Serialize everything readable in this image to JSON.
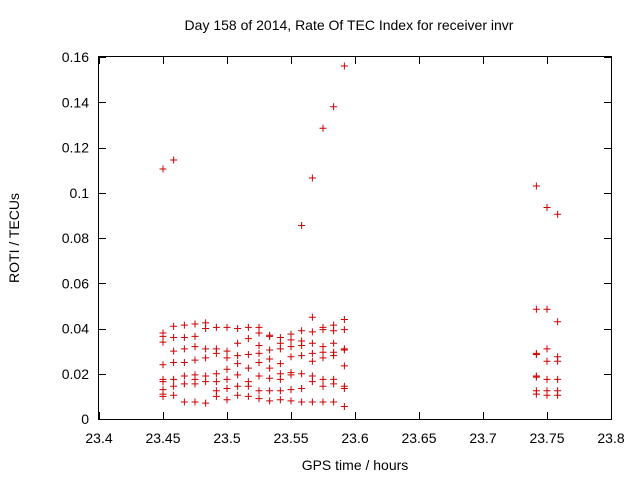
{
  "chart_data": {
    "type": "scatter",
    "title": "Day 158 of 2014, Rate Of TEC Index for receiver invr",
    "xlabel": "GPS time / hours",
    "ylabel": "ROTI / TECUs",
    "xlim": [
      23.4,
      23.8
    ],
    "ylim": [
      0,
      0.16
    ],
    "xticks": [
      23.4,
      23.45,
      23.5,
      23.55,
      23.6,
      23.65,
      23.7,
      23.75,
      23.8
    ],
    "yticks": [
      0,
      0.02,
      0.04,
      0.06,
      0.08,
      0.1,
      0.12,
      0.14,
      0.16
    ],
    "xtick_labels": [
      "23.4",
      "23.45",
      "23.5",
      "23.55",
      "23.6",
      "23.65",
      "23.7",
      "23.75",
      "23.8"
    ],
    "ytick_labels": [
      "0",
      "0.02",
      "0.04",
      "0.06",
      "0.08",
      "0.1",
      "0.12",
      "0.14",
      "0.16"
    ],
    "grid": false,
    "marker": "+",
    "color": "#cc0000",
    "series": [
      {
        "name": "ROTI",
        "points": [
          [
            23.45,
            0.1105
          ],
          [
            23.4583,
            0.1145
          ],
          [
            23.5583,
            0.0855
          ],
          [
            23.5667,
            0.1065
          ],
          [
            23.575,
            0.1285
          ],
          [
            23.5833,
            0.138
          ],
          [
            23.5917,
            0.156
          ],
          [
            23.7417,
            0.103
          ],
          [
            23.75,
            0.0935
          ],
          [
            23.7583,
            0.0905
          ],
          [
            23.45,
            0.038
          ],
          [
            23.45,
            0.0365
          ],
          [
            23.45,
            0.034
          ],
          [
            23.45,
            0.024
          ],
          [
            23.45,
            0.0175
          ],
          [
            23.45,
            0.0165
          ],
          [
            23.45,
            0.013
          ],
          [
            23.45,
            0.011
          ],
          [
            23.45,
            0.01
          ],
          [
            23.4583,
            0.041
          ],
          [
            23.4583,
            0.036
          ],
          [
            23.4583,
            0.03
          ],
          [
            23.4583,
            0.025
          ],
          [
            23.4583,
            0.0175
          ],
          [
            23.4583,
            0.0145
          ],
          [
            23.4583,
            0.0105
          ],
          [
            23.4667,
            0.0415
          ],
          [
            23.4667,
            0.036
          ],
          [
            23.4667,
            0.031
          ],
          [
            23.4667,
            0.025
          ],
          [
            23.4667,
            0.019
          ],
          [
            23.4667,
            0.0155
          ],
          [
            23.4667,
            0.0075
          ],
          [
            23.475,
            0.042
          ],
          [
            23.475,
            0.0365
          ],
          [
            23.475,
            0.032
          ],
          [
            23.475,
            0.026
          ],
          [
            23.475,
            0.0195
          ],
          [
            23.475,
            0.0175
          ],
          [
            23.475,
            0.0155
          ],
          [
            23.475,
            0.0075
          ],
          [
            23.4833,
            0.0425
          ],
          [
            23.4833,
            0.04
          ],
          [
            23.4833,
            0.031
          ],
          [
            23.4833,
            0.027
          ],
          [
            23.4833,
            0.019
          ],
          [
            23.4833,
            0.0165
          ],
          [
            23.4833,
            0.007
          ],
          [
            23.4917,
            0.0405
          ],
          [
            23.4917,
            0.031
          ],
          [
            23.4917,
            0.029
          ],
          [
            23.4917,
            0.02
          ],
          [
            23.4917,
            0.0165
          ],
          [
            23.4917,
            0.0125
          ],
          [
            23.4917,
            0.01
          ],
          [
            23.5,
            0.0405
          ],
          [
            23.5,
            0.03
          ],
          [
            23.5,
            0.027
          ],
          [
            23.5,
            0.022
          ],
          [
            23.5,
            0.0175
          ],
          [
            23.5,
            0.0135
          ],
          [
            23.5,
            0.0085
          ],
          [
            23.5083,
            0.04
          ],
          [
            23.5083,
            0.0335
          ],
          [
            23.5083,
            0.028
          ],
          [
            23.5083,
            0.0245
          ],
          [
            23.5083,
            0.0195
          ],
          [
            23.5083,
            0.0145
          ],
          [
            23.5083,
            0.0105
          ],
          [
            23.5167,
            0.0405
          ],
          [
            23.5167,
            0.0355
          ],
          [
            23.5167,
            0.0285
          ],
          [
            23.5167,
            0.0225
          ],
          [
            23.5167,
            0.0165
          ],
          [
            23.5167,
            0.0145
          ],
          [
            23.5167,
            0.01
          ],
          [
            23.525,
            0.0405
          ],
          [
            23.525,
            0.038
          ],
          [
            23.525,
            0.0325
          ],
          [
            23.525,
            0.029
          ],
          [
            23.525,
            0.025
          ],
          [
            23.525,
            0.019
          ],
          [
            23.525,
            0.0125
          ],
          [
            23.525,
            0.009
          ],
          [
            23.5333,
            0.037
          ],
          [
            23.5333,
            0.0365
          ],
          [
            23.5333,
            0.0305
          ],
          [
            23.5333,
            0.0265
          ],
          [
            23.5333,
            0.0225
          ],
          [
            23.5333,
            0.018
          ],
          [
            23.5333,
            0.0125
          ],
          [
            23.5333,
            0.008
          ],
          [
            23.5417,
            0.036
          ],
          [
            23.5417,
            0.0335
          ],
          [
            23.5417,
            0.031
          ],
          [
            23.5417,
            0.0245
          ],
          [
            23.5417,
            0.02
          ],
          [
            23.5417,
            0.0175
          ],
          [
            23.5417,
            0.0125
          ],
          [
            23.5417,
            0.0085
          ],
          [
            23.55,
            0.0375
          ],
          [
            23.55,
            0.035
          ],
          [
            23.55,
            0.032
          ],
          [
            23.55,
            0.0275
          ],
          [
            23.55,
            0.0205
          ],
          [
            23.55,
            0.0195
          ],
          [
            23.55,
            0.013
          ],
          [
            23.55,
            0.008
          ],
          [
            23.5583,
            0.039
          ],
          [
            23.5583,
            0.0345
          ],
          [
            23.5583,
            0.0325
          ],
          [
            23.5583,
            0.028
          ],
          [
            23.5583,
            0.02
          ],
          [
            23.5583,
            0.0135
          ],
          [
            23.5583,
            0.0075
          ],
          [
            23.5667,
            0.045
          ],
          [
            23.5667,
            0.0385
          ],
          [
            23.5667,
            0.0335
          ],
          [
            23.5667,
            0.029
          ],
          [
            23.5667,
            0.0255
          ],
          [
            23.5667,
            0.019
          ],
          [
            23.5667,
            0.0165
          ],
          [
            23.5667,
            0.0075
          ],
          [
            23.575,
            0.0405
          ],
          [
            23.575,
            0.0395
          ],
          [
            23.575,
            0.032
          ],
          [
            23.575,
            0.0295
          ],
          [
            23.575,
            0.027
          ],
          [
            23.575,
            0.0175
          ],
          [
            23.575,
            0.0145
          ],
          [
            23.575,
            0.0075
          ],
          [
            23.5833,
            0.0415
          ],
          [
            23.5833,
            0.039
          ],
          [
            23.5833,
            0.0335
          ],
          [
            23.5833,
            0.0295
          ],
          [
            23.5833,
            0.028
          ],
          [
            23.5833,
            0.0175
          ],
          [
            23.5833,
            0.0155
          ],
          [
            23.5833,
            0.0075
          ],
          [
            23.5917,
            0.044
          ],
          [
            23.5917,
            0.0395
          ],
          [
            23.5917,
            0.031
          ],
          [
            23.5917,
            0.0305
          ],
          [
            23.5917,
            0.0235
          ],
          [
            23.5917,
            0.0145
          ],
          [
            23.5917,
            0.0135
          ],
          [
            23.5917,
            0.0055
          ],
          [
            23.7417,
            0.0485
          ],
          [
            23.7417,
            0.0285
          ],
          [
            23.7417,
            0.029
          ],
          [
            23.7417,
            0.019
          ],
          [
            23.7417,
            0.0185
          ],
          [
            23.7417,
            0.0125
          ],
          [
            23.7417,
            0.011
          ],
          [
            23.75,
            0.0485
          ],
          [
            23.75,
            0.031
          ],
          [
            23.75,
            0.0255
          ],
          [
            23.75,
            0.0175
          ],
          [
            23.75,
            0.0125
          ],
          [
            23.75,
            0.0105
          ],
          [
            23.7583,
            0.043
          ],
          [
            23.7583,
            0.0275
          ],
          [
            23.7583,
            0.0255
          ],
          [
            23.7583,
            0.0175
          ],
          [
            23.7583,
            0.0125
          ],
          [
            23.7583,
            0.0105
          ]
        ]
      }
    ]
  }
}
